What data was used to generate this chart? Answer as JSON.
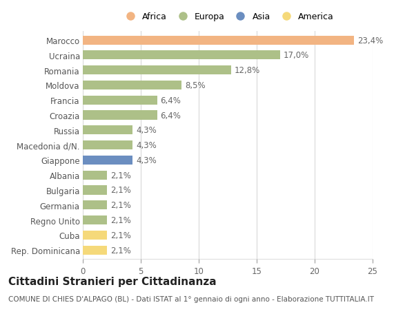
{
  "categories": [
    "Marocco",
    "Ucraina",
    "Romania",
    "Moldova",
    "Francia",
    "Croazia",
    "Russia",
    "Macedonia d/N.",
    "Giappone",
    "Albania",
    "Bulgaria",
    "Germania",
    "Regno Unito",
    "Cuba",
    "Rep. Dominicana"
  ],
  "values": [
    23.4,
    17.0,
    12.8,
    8.5,
    6.4,
    6.4,
    4.3,
    4.3,
    4.3,
    2.1,
    2.1,
    2.1,
    2.1,
    2.1,
    2.1
  ],
  "labels": [
    "23,4%",
    "17,0%",
    "12,8%",
    "8,5%",
    "6,4%",
    "6,4%",
    "4,3%",
    "4,3%",
    "4,3%",
    "2,1%",
    "2,1%",
    "2,1%",
    "2,1%",
    "2,1%",
    "2,1%"
  ],
  "colors": [
    "#f2b482",
    "#adc088",
    "#adc088",
    "#adc088",
    "#adc088",
    "#adc088",
    "#adc088",
    "#adc088",
    "#6b8ec0",
    "#adc088",
    "#adc088",
    "#adc088",
    "#adc088",
    "#f5d97a",
    "#f5d97a"
  ],
  "legend_labels": [
    "Africa",
    "Europa",
    "Asia",
    "America"
  ],
  "legend_colors": [
    "#f2b482",
    "#adc088",
    "#6b8ec0",
    "#f5d97a"
  ],
  "title": "Cittadini Stranieri per Cittadinanza",
  "subtitle": "COMUNE DI CHIES D'ALPAGO (BL) - Dati ISTAT al 1° gennaio di ogni anno - Elaborazione TUTTITALIA.IT",
  "xlim": [
    0,
    25
  ],
  "xticks": [
    0,
    5,
    10,
    15,
    20,
    25
  ],
  "background_color": "#ffffff",
  "grid_color": "#d8d8d8",
  "bar_height": 0.6,
  "label_fontsize": 8.5,
  "tick_fontsize": 8.5,
  "title_fontsize": 11,
  "subtitle_fontsize": 7.5
}
